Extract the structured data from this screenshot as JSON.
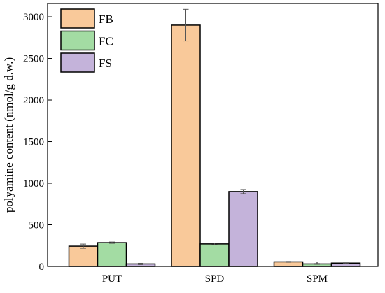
{
  "chart_data": {
    "type": "bar",
    "y_label": "polyamine content (nmol/g d.w.)",
    "categories": [
      "PUT",
      "SPD",
      "SPM"
    ],
    "series": [
      {
        "name": "FB",
        "color": "#f9c99a",
        "values": [
          243,
          2900,
          55
        ],
        "errors": [
          25,
          190,
          5
        ]
      },
      {
        "name": "FC",
        "color": "#a3dca3",
        "values": [
          285,
          270,
          30
        ],
        "errors": [
          8,
          10,
          5
        ]
      },
      {
        "name": "FS",
        "color": "#c4b3da",
        "values": [
          30,
          900,
          40
        ],
        "errors": [
          8,
          25,
          5
        ]
      }
    ],
    "ylim": [
      0,
      3160
    ],
    "yticks": [
      0,
      500,
      1000,
      1500,
      2000,
      2500,
      3000
    ],
    "legend": "upper-left"
  }
}
